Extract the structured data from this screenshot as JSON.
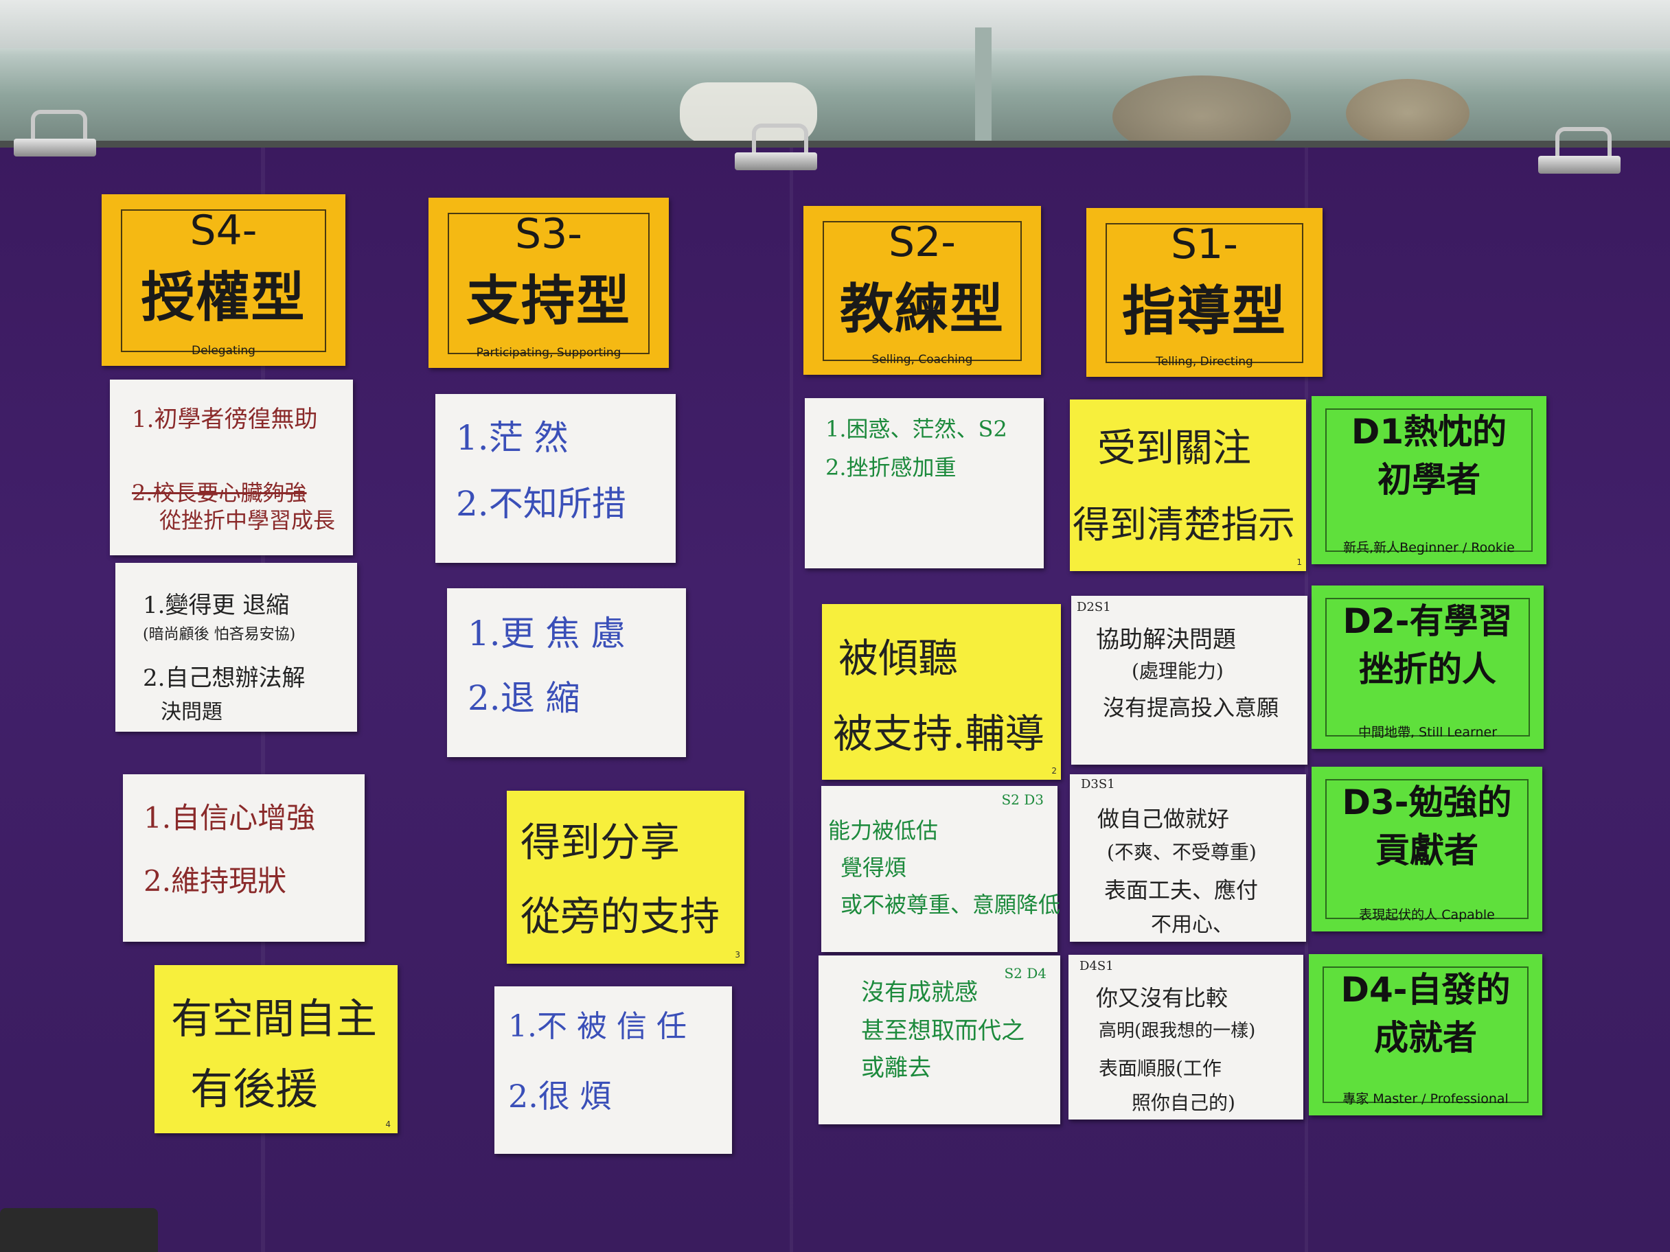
{
  "style_cards": [
    {
      "code": "S4-",
      "name": "授權型",
      "en": "Delegating"
    },
    {
      "code": "S3-",
      "name": "支持型",
      "en": "Participating, Supporting"
    },
    {
      "code": "S2-",
      "name": "教練型",
      "en": "Selling, Coaching"
    },
    {
      "code": "S1-",
      "name": "指導型",
      "en": "Telling, Directing"
    }
  ],
  "dev_cards": [
    {
      "line1": "D1熱忱的",
      "line2": "初學者",
      "en": "新兵,新人Beginner / Rookie"
    },
    {
      "line1": "D2-有學習",
      "line2": "挫折的人",
      "en": "中間地帶, Still Learner"
    },
    {
      "line1": "D3-勉強的",
      "line2": "貢獻者",
      "en": "表現起伏的人 Capable"
    },
    {
      "line1": "D4-自發的",
      "line2": "成就者",
      "en": "專家  Master / Professional"
    }
  ],
  "notes": {
    "s4_a": {
      "l1": "1.初學者徬徨無助",
      "l2_struck": "2.校長要心臟夠強",
      "l3": "從挫折中學習成長"
    },
    "s4_b": {
      "l1": "1.變得更 退縮",
      "l2": "(暗尚顧後 怕吝易安協)",
      "l3": "2.自己想辦法解",
      "l4": "決問題"
    },
    "s4_c": {
      "l1": "1.自信心增強",
      "l2": "2.維持現狀"
    },
    "s4_y": {
      "l1": "有空間自主",
      "l2": "有後援",
      "page": "4"
    },
    "s3_a": {
      "l1": "1.茫  然",
      "l2": "2.不知所措"
    },
    "s3_b": {
      "l1": "1.更 焦 慮",
      "l2": "2.退   縮"
    },
    "s3_y": {
      "l1": "得到分享",
      "l2": "從旁的支持",
      "page": "3"
    },
    "s3_c": {
      "l1": "1.不 被 信 任",
      "l2": "2.很  煩"
    },
    "s2_a": {
      "l1": "1.困惑、茫然、S2",
      "l2": "2.挫折感加重"
    },
    "s2_y": {
      "l1": "被傾聽",
      "l2": "被支持.輔導",
      "page": "2"
    },
    "s2_b": {
      "tag": "S2 D3",
      "l1": "能力被低估",
      "l2": "覺得煩",
      "l3": "或不被尊重、意願降低"
    },
    "s2_c": {
      "tag": "S2 D4",
      "l1": "沒有成就感",
      "l2": "甚至想取而代之",
      "l3": "或離去"
    },
    "s1_y": {
      "l1": "受到關注",
      "l2": "得到清楚指示",
      "page": "1"
    },
    "s1_a": {
      "tag": "D2S1",
      "l1": "協助解決問題",
      "l2": "(處理能力)",
      "l3": "沒有提高投入意願"
    },
    "s1_b": {
      "tag": "D3S1",
      "l1": "做自己做就好",
      "l2": "(不爽、不受尊重)",
      "l3": "表面工夫、應付",
      "l4": "不用心、"
    },
    "s1_c": {
      "tag": "D4S1",
      "l1": "你又沒有比較",
      "l2": "高明(跟我想的一樣)",
      "l3": "表面順服(工作",
      "l4": "照你自己的)"
    }
  },
  "colors": {
    "cloth": "#3d1d63",
    "style_card": "#f5b913",
    "dev_card": "#5fe03c",
    "sticky": "#f7ef3c",
    "paper": "#f4f3f1"
  }
}
